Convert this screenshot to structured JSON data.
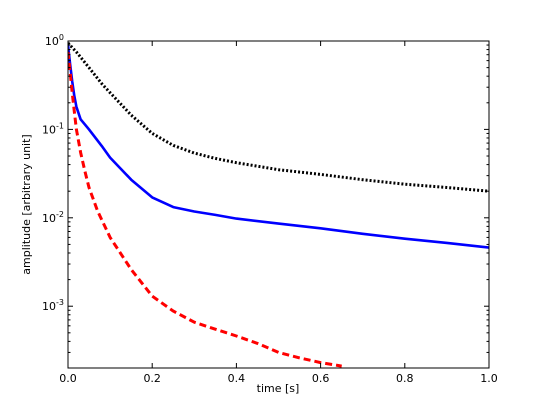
{
  "chart_data": {
    "type": "line",
    "title": "",
    "xlabel": "time [s]",
    "ylabel": "amplitude [arbitrary unit]",
    "xlim": [
      0.0,
      1.0
    ],
    "ylim": [
      0.0002,
      1.0
    ],
    "y_scale": "log",
    "grid": false,
    "legend": "none",
    "x_ticks": [
      "0.0",
      "0.2",
      "0.4",
      "0.6",
      "0.8",
      "1.0"
    ],
    "y_ticks": [
      {
        "base": "10",
        "exp": "0"
      },
      {
        "base": "10",
        "exp": "-1"
      },
      {
        "base": "10",
        "exp": "-2"
      },
      {
        "base": "10",
        "exp": "-3"
      }
    ],
    "series": [
      {
        "style": "dotted",
        "color": "#000000",
        "x": [
          0.0,
          0.02,
          0.05,
          0.08,
          0.1,
          0.15,
          0.2,
          0.25,
          0.3,
          0.35,
          0.4,
          0.5,
          0.6,
          0.7,
          0.8,
          0.9,
          1.0
        ],
        "y": [
          0.95,
          0.75,
          0.5,
          0.33,
          0.26,
          0.145,
          0.09,
          0.066,
          0.054,
          0.047,
          0.042,
          0.035,
          0.031,
          0.027,
          0.024,
          0.022,
          0.02
        ]
      },
      {
        "style": "solid",
        "color": "#0000ff",
        "x": [
          0.0,
          0.005,
          0.01,
          0.015,
          0.02,
          0.03,
          0.05,
          0.08,
          0.1,
          0.15,
          0.2,
          0.25,
          0.3,
          0.35,
          0.4,
          0.5,
          0.6,
          0.7,
          0.8,
          0.9,
          1.0
        ],
        "y": [
          0.9,
          0.55,
          0.35,
          0.24,
          0.18,
          0.13,
          0.1,
          0.065,
          0.048,
          0.027,
          0.017,
          0.0132,
          0.0118,
          0.0108,
          0.0098,
          0.0086,
          0.0076,
          0.0066,
          0.0058,
          0.0052,
          0.0046
        ]
      },
      {
        "style": "dashed",
        "color": "#ff0000",
        "x": [
          0.0,
          0.005,
          0.01,
          0.015,
          0.02,
          0.03,
          0.04,
          0.05,
          0.07,
          0.1,
          0.15,
          0.2,
          0.25,
          0.3,
          0.35,
          0.4,
          0.45,
          0.5,
          0.55,
          0.6,
          0.65
        ],
        "y": [
          0.75,
          0.45,
          0.26,
          0.16,
          0.1,
          0.055,
          0.034,
          0.022,
          0.012,
          0.006,
          0.0026,
          0.0013,
          0.00088,
          0.00066,
          0.00055,
          0.00046,
          0.00038,
          0.0003,
          0.00026,
          0.00023,
          0.00021
        ]
      }
    ]
  }
}
